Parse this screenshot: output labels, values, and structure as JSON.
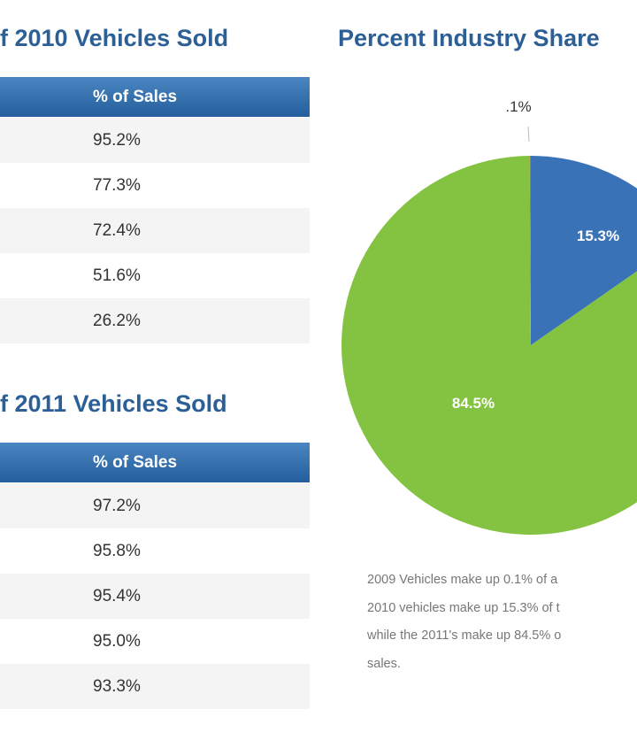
{
  "table_2010": {
    "title": "f 2010 Vehicles Sold",
    "header": "% of Sales",
    "values": [
      "95.2%",
      "77.3%",
      "72.4%",
      "51.6%",
      "26.2%"
    ]
  },
  "table_2011": {
    "title": "f 2011 Vehicles Sold",
    "header": "% of Sales",
    "values": [
      "97.2%",
      "95.8%",
      "95.4%",
      "95.0%",
      "93.3%"
    ]
  },
  "chart_data": {
    "type": "pie",
    "title": "Percent Industry Share",
    "slices": [
      {
        "label": ".1%",
        "value": 0.1,
        "color": "#e0603a"
      },
      {
        "label": "15.3%",
        "value": 15.3,
        "color": "#3a72b8"
      },
      {
        "label": "84.5%",
        "value": 84.5,
        "color": "#84c341"
      }
    ]
  },
  "description": [
    "2009 Vehicles make up 0.1% of a",
    "2010 vehicles make up 15.3% of t",
    "while the 2011's make up 84.5% o",
    "sales."
  ]
}
